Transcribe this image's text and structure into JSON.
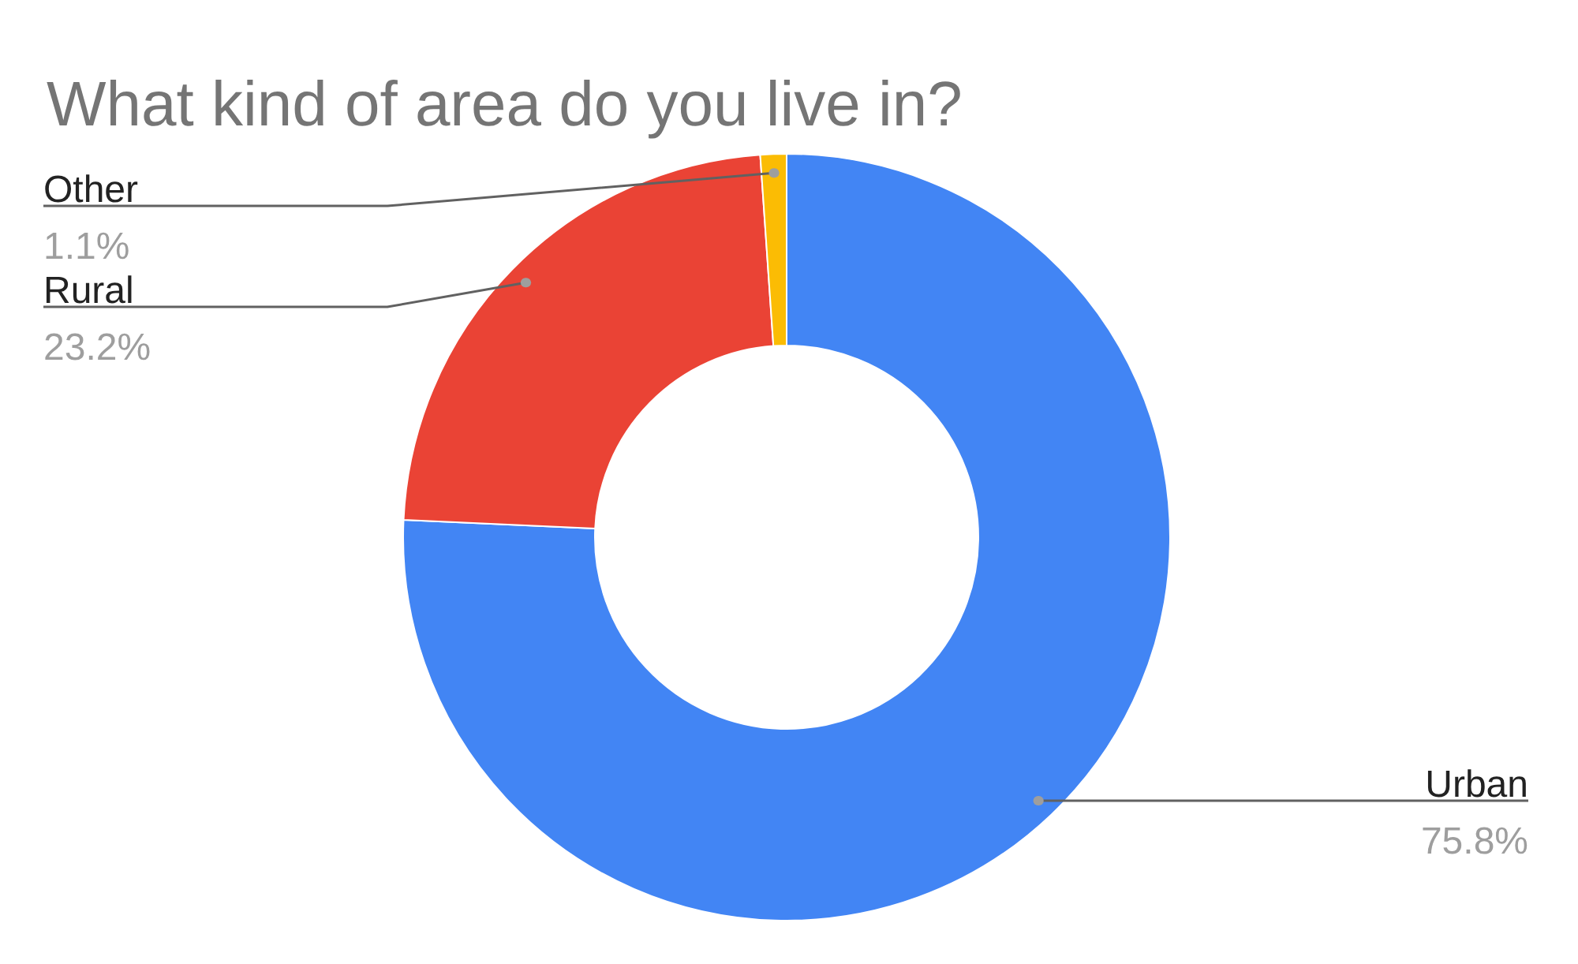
{
  "chart_data": {
    "type": "donut",
    "title": "What kind of area do you live in?",
    "categories": [
      "Urban",
      "Rural",
      "Other"
    ],
    "values": [
      75.8,
      23.2,
      1.1
    ],
    "colors": [
      "#4285f4",
      "#ea4335",
      "#fbbc04"
    ],
    "value_labels": [
      "75.8%",
      "23.2%",
      "1.1%"
    ]
  }
}
